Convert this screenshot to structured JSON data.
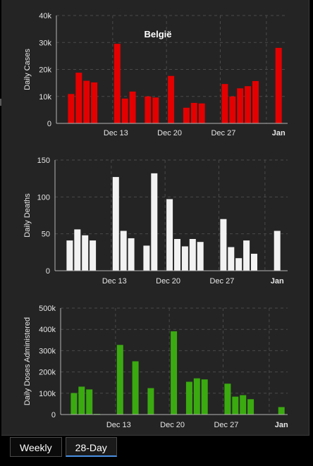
{
  "tabs": [
    {
      "label": "Weekly",
      "active": false
    },
    {
      "label": "28-Day",
      "active": true
    }
  ],
  "colors": {
    "cases": "#e40000",
    "deaths": "#f2f2f2",
    "doses": "#3aaa10",
    "grid": "#4a4a4a",
    "axis": "#b5b5b5",
    "text": "#e6e6e6"
  },
  "chart_data": [
    {
      "type": "bar",
      "title": "België",
      "ylabel": "Daily Cases",
      "xlabel": "",
      "ylim": [
        0,
        40000
      ],
      "yticks": [
        0,
        10000,
        20000,
        30000,
        40000
      ],
      "ytick_labels": [
        "0",
        "10k",
        "20k",
        "30k",
        "40k"
      ],
      "xticks": [
        "Dec 13",
        "Dec 20",
        "Dec 27",
        "Jan"
      ],
      "grid": true,
      "x": [
        "Dec 6",
        "Dec 7",
        "Dec 8",
        "Dec 9",
        "Dec 10",
        "Dec 11",
        "Dec 12",
        "Dec 13",
        "Dec 14",
        "Dec 15",
        "Dec 16",
        "Dec 17",
        "Dec 18",
        "Dec 19",
        "Dec 20",
        "Dec 21",
        "Dec 22",
        "Dec 23",
        "Dec 24",
        "Dec 25",
        "Dec 26",
        "Dec 27",
        "Dec 28",
        "Dec 29",
        "Dec 30",
        "Dec 31",
        "Jan 1",
        "Jan 2",
        "Jan 3"
      ],
      "values": [
        null,
        10900,
        18800,
        15800,
        15200,
        null,
        null,
        29500,
        9200,
        11800,
        null,
        10000,
        9600,
        null,
        17600,
        null,
        5800,
        7600,
        7400,
        null,
        null,
        14600,
        10000,
        13000,
        13800,
        15700,
        null,
        null,
        28000
      ]
    },
    {
      "type": "bar",
      "ylabel": "Daily Deaths",
      "xlabel": "",
      "ylim": [
        0,
        150
      ],
      "yticks": [
        0,
        50,
        100,
        150
      ],
      "ytick_labels": [
        "0",
        "50",
        "100",
        "150"
      ],
      "xticks": [
        "Dec 13",
        "Dec 20",
        "Dec 27",
        "Jan"
      ],
      "grid": true,
      "x": [
        "Dec 6",
        "Dec 7",
        "Dec 8",
        "Dec 9",
        "Dec 10",
        "Dec 11",
        "Dec 12",
        "Dec 13",
        "Dec 14",
        "Dec 15",
        "Dec 16",
        "Dec 17",
        "Dec 18",
        "Dec 19",
        "Dec 20",
        "Dec 21",
        "Dec 22",
        "Dec 23",
        "Dec 24",
        "Dec 25",
        "Dec 26",
        "Dec 27",
        "Dec 28",
        "Dec 29",
        "Dec 30",
        "Dec 31",
        "Jan 1",
        "Jan 2",
        "Jan 3"
      ],
      "values": [
        null,
        41,
        56,
        48,
        41,
        null,
        null,
        127,
        54,
        44,
        null,
        34,
        132,
        null,
        97,
        43,
        33,
        43,
        39,
        null,
        null,
        70,
        32,
        17,
        41,
        23,
        null,
        null,
        54
      ]
    },
    {
      "type": "bar",
      "ylabel": "Daily Doses Administered",
      "xlabel": "",
      "ylim": [
        0,
        500000
      ],
      "yticks": [
        0,
        100000,
        200000,
        300000,
        400000,
        500000
      ],
      "ytick_labels": [
        "0",
        "100k",
        "200k",
        "300k",
        "400k",
        "500k"
      ],
      "xticks": [
        "Dec 13",
        "Dec 20",
        "Dec 27",
        "Jan"
      ],
      "grid": true,
      "x": [
        "Dec 6",
        "Dec 7",
        "Dec 8",
        "Dec 9",
        "Dec 10",
        "Dec 11",
        "Dec 12",
        "Dec 13",
        "Dec 14",
        "Dec 15",
        "Dec 16",
        "Dec 17",
        "Dec 18",
        "Dec 19",
        "Dec 20",
        "Dec 21",
        "Dec 22",
        "Dec 23",
        "Dec 24",
        "Dec 25",
        "Dec 26",
        "Dec 27",
        "Dec 28",
        "Dec 29",
        "Dec 30",
        "Dec 31",
        "Jan 1",
        "Jan 2",
        "Jan 3"
      ],
      "values": [
        null,
        101000,
        131000,
        118000,
        3000,
        null,
        null,
        327000,
        null,
        250000,
        null,
        124000,
        null,
        null,
        391000,
        null,
        154000,
        170000,
        165000,
        null,
        null,
        145000,
        84000,
        91000,
        72000,
        null,
        null,
        null,
        35000
      ]
    }
  ]
}
